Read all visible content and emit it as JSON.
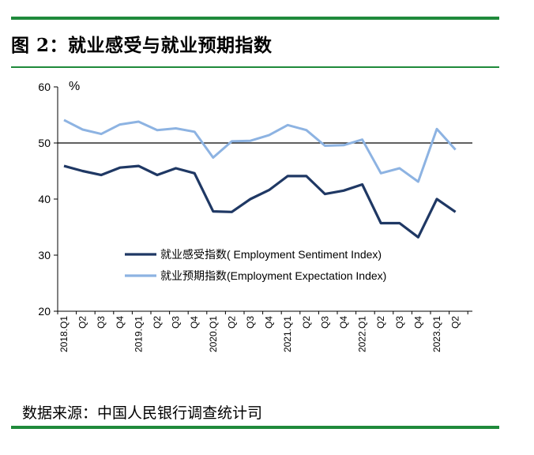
{
  "figure": {
    "title": "图 2：就业感受与就业预期指数",
    "source": "数据来源：中国人民银行调查统计司"
  },
  "colors": {
    "rule": "#1f8a3b",
    "sentiment": "#1f3864",
    "expectation": "#8db3e2"
  },
  "chart_data": {
    "type": "line",
    "categories": [
      "2018.Q1",
      "Q2",
      "Q3",
      "Q4",
      "2019.Q1",
      "Q2",
      "Q3",
      "Q4",
      "2020.Q1",
      "Q2",
      "Q3",
      "Q4",
      "2021.Q1",
      "Q2",
      "Q3",
      "Q4",
      "2022.Q1",
      "Q2",
      "Q3",
      "Q4",
      "2023.Q1",
      "Q2"
    ],
    "series": [
      {
        "name": "就业感受指数( Employment Sentiment Index)",
        "color": "#1f3864",
        "values": [
          45.9,
          45.0,
          44.3,
          45.6,
          45.9,
          44.3,
          45.5,
          44.6,
          37.8,
          37.7,
          40.0,
          41.6,
          44.1,
          44.1,
          40.9,
          41.5,
          42.6,
          35.7,
          35.7,
          33.2,
          40.0,
          37.7
        ]
      },
      {
        "name": "就业预期指数(Employment Expectation Index)",
        "color": "#8db3e2",
        "values": [
          54.1,
          52.4,
          51.6,
          53.3,
          53.8,
          52.3,
          52.6,
          52.0,
          47.4,
          50.3,
          50.4,
          51.4,
          53.2,
          52.3,
          49.5,
          49.6,
          50.6,
          44.6,
          45.5,
          43.1,
          52.5,
          48.8
        ]
      }
    ],
    "ylim": [
      20,
      60
    ],
    "yticks": [
      20,
      30,
      40,
      50,
      60
    ],
    "ylabel": "%",
    "reference_line": 50,
    "legend_position": "lower-center",
    "grid": false
  }
}
